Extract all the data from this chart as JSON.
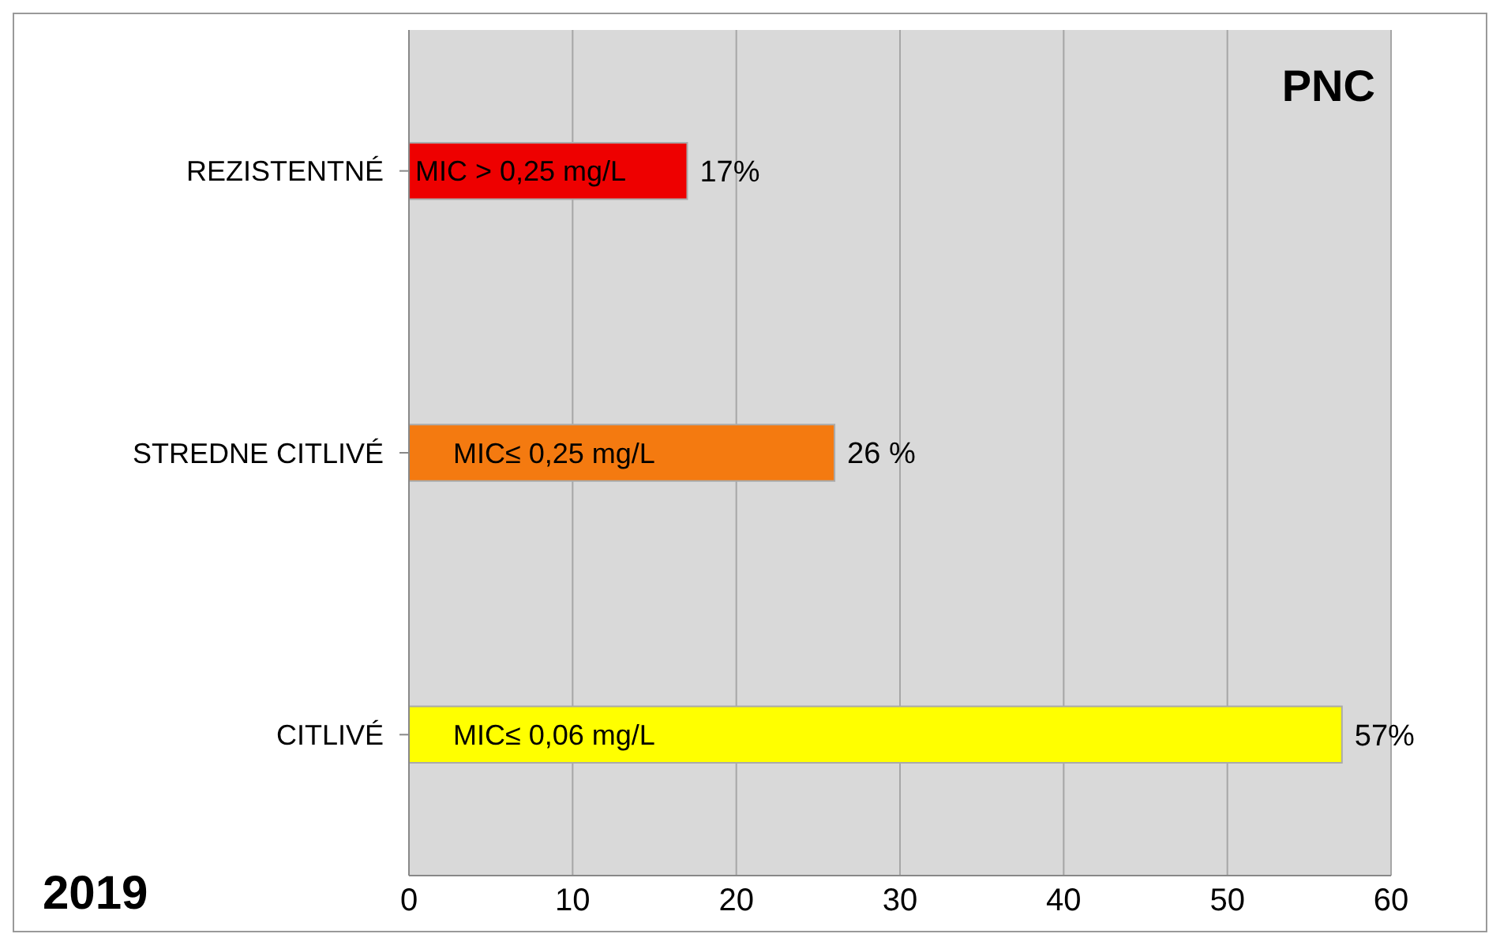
{
  "chart_data": {
    "type": "bar",
    "orientation": "horizontal",
    "title": "PNC",
    "categories": [
      "REZISTENTNÉ",
      "STREDNE CITLIVÉ",
      "CITLIVÉ"
    ],
    "values": [
      17,
      26,
      57
    ],
    "colors": [
      "#ee0000",
      "#f47a10",
      "#ffff00"
    ],
    "value_labels": [
      "17%",
      "26 %",
      "57%"
    ],
    "xlim": [
      0,
      60
    ],
    "xticks": [
      0,
      10,
      20,
      30,
      40,
      50,
      60
    ],
    "grid": "x",
    "annotations": [
      "MIC > 0,25 mg/L",
      "MIC≤ 0,25 mg/L",
      "MIC≤ 0,06 mg/L",
      "2019"
    ]
  }
}
